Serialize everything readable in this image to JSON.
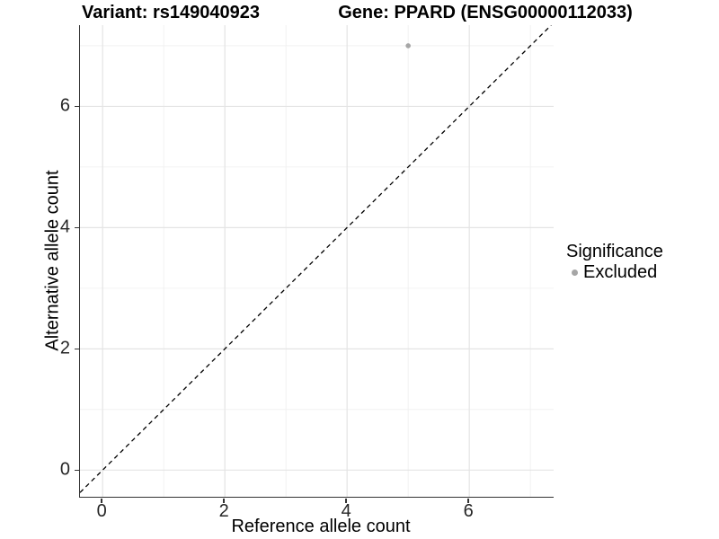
{
  "chart_data": {
    "type": "scatter",
    "title_left": "Variant: rs149040923",
    "title_right": "Gene: PPARD (ENSG00000112033)",
    "xlabel": "Reference allele count",
    "ylabel": "Alternative allele count",
    "xlim": [
      -0.37,
      7.38
    ],
    "ylim": [
      -0.44,
      7.34
    ],
    "x_ticks": [
      0,
      2,
      4,
      6
    ],
    "y_ticks": [
      0,
      2,
      4,
      6
    ],
    "x_grid": [
      0,
      1,
      2,
      3,
      4,
      5,
      6,
      7
    ],
    "y_grid": [
      0,
      1,
      2,
      3,
      4,
      5,
      6,
      7
    ],
    "grid": true,
    "legend": {
      "title": "Significance",
      "position": "right",
      "items": [
        {
          "label": "Excluded",
          "color": "#a6a6a6"
        }
      ]
    },
    "series": [
      {
        "name": "Excluded",
        "color": "#a6a6a6",
        "points": [
          [
            5,
            7
          ]
        ]
      }
    ],
    "reference_line": {
      "style": "dashed",
      "color": "#000000",
      "slope": 1,
      "intercept": 0
    }
  },
  "colors": {
    "background": "#ffffff",
    "grid_major": "#e4e4e4",
    "grid_minor": "#efefef",
    "axis_line": "#333333",
    "tick_text": "#262626",
    "point": "#a6a6a6"
  }
}
